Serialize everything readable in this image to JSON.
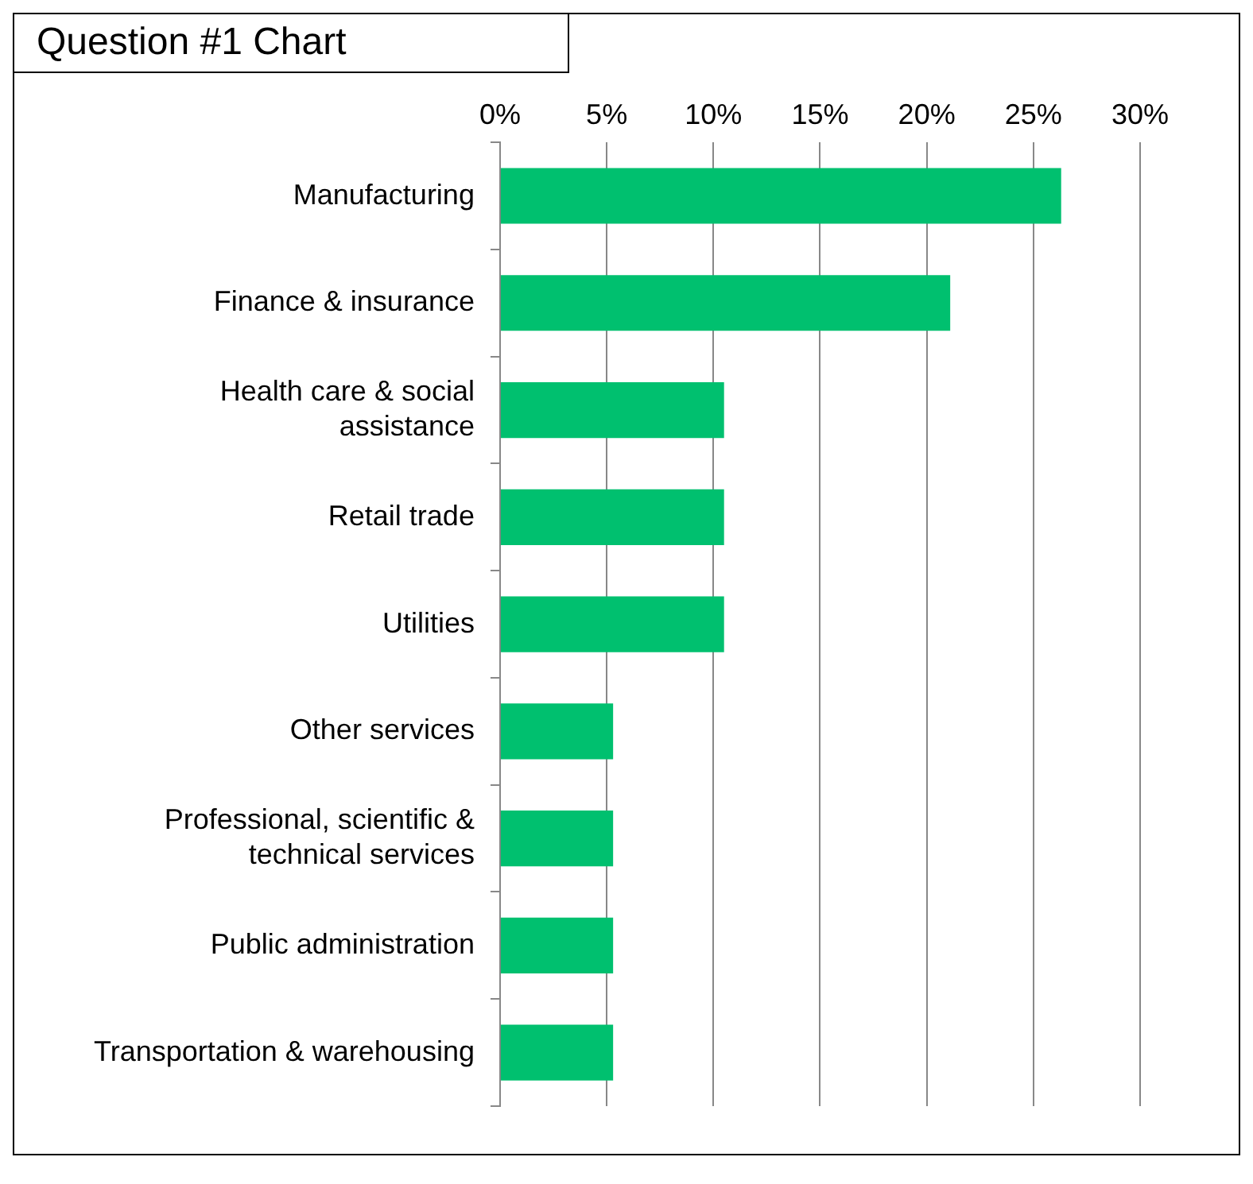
{
  "chart_data": {
    "type": "bar",
    "orientation": "horizontal",
    "title": "Question #1 Chart",
    "categories": [
      "Manufacturing",
      "Finance & insurance",
      "Health care & social assistance",
      "Retail trade",
      "Utilities",
      "Other services",
      "Professional, scientific & technical services",
      "Public administration",
      "Transportation & warehousing"
    ],
    "values": [
      26.3,
      21.1,
      10.5,
      10.5,
      10.5,
      5.3,
      5.3,
      5.3,
      5.3
    ],
    "color": "#00c06f",
    "xlim": [
      0,
      30
    ],
    "xticks": [
      {
        "value": 0,
        "label": "0%"
      },
      {
        "value": 5,
        "label": "5%"
      },
      {
        "value": 10,
        "label": "10%"
      },
      {
        "value": 15,
        "label": "15%"
      },
      {
        "value": 20,
        "label": "20%"
      },
      {
        "value": 25,
        "label": "25%"
      },
      {
        "value": 30,
        "label": "30%"
      }
    ],
    "grid": "x",
    "legend": false
  }
}
